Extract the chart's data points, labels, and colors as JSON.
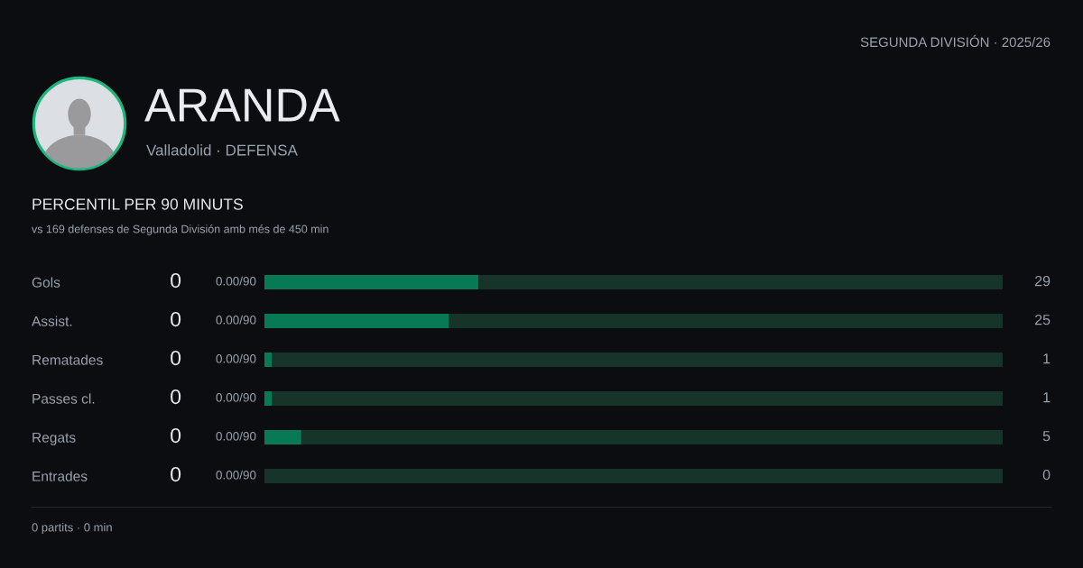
{
  "chart_data": {
    "type": "bar",
    "orientation": "horizontal",
    "stacked": true,
    "title": "ARANDA",
    "subtitle": "Valladolid · DEFENSA",
    "categories": [
      "Gols",
      "Assist.",
      "Rematades",
      "Passes cl.",
      "Regats",
      "Entrades"
    ],
    "series": [
      {
        "color": "#077a55",
        "values": [
          29,
          25,
          1,
          1,
          5,
          0
        ],
        "value_labels": [
          "29",
          "25",
          "1",
          "1",
          "5",
          "0"
        ]
      },
      {
        "color": "#163429",
        "values": [
          71,
          75,
          99,
          99,
          95,
          100
        ]
      }
    ],
    "xlim": [
      0,
      100
    ],
    "tick_labels": "y",
    "annotations": [
      "SEGUNDA DIVISIÓN · 2025/26",
      "PERCENTIL PER 90 MINUTS",
      "vs 169 defenses de Segunda División amb més de 450 min",
      "0 partits · 0 min",
      "0",
      "0.00/90",
      "0",
      "0.00/90",
      "0",
      "0.00/90",
      "0",
      "0.00/90",
      "0",
      "0.00/90",
      "0",
      "0.00/90"
    ]
  }
}
